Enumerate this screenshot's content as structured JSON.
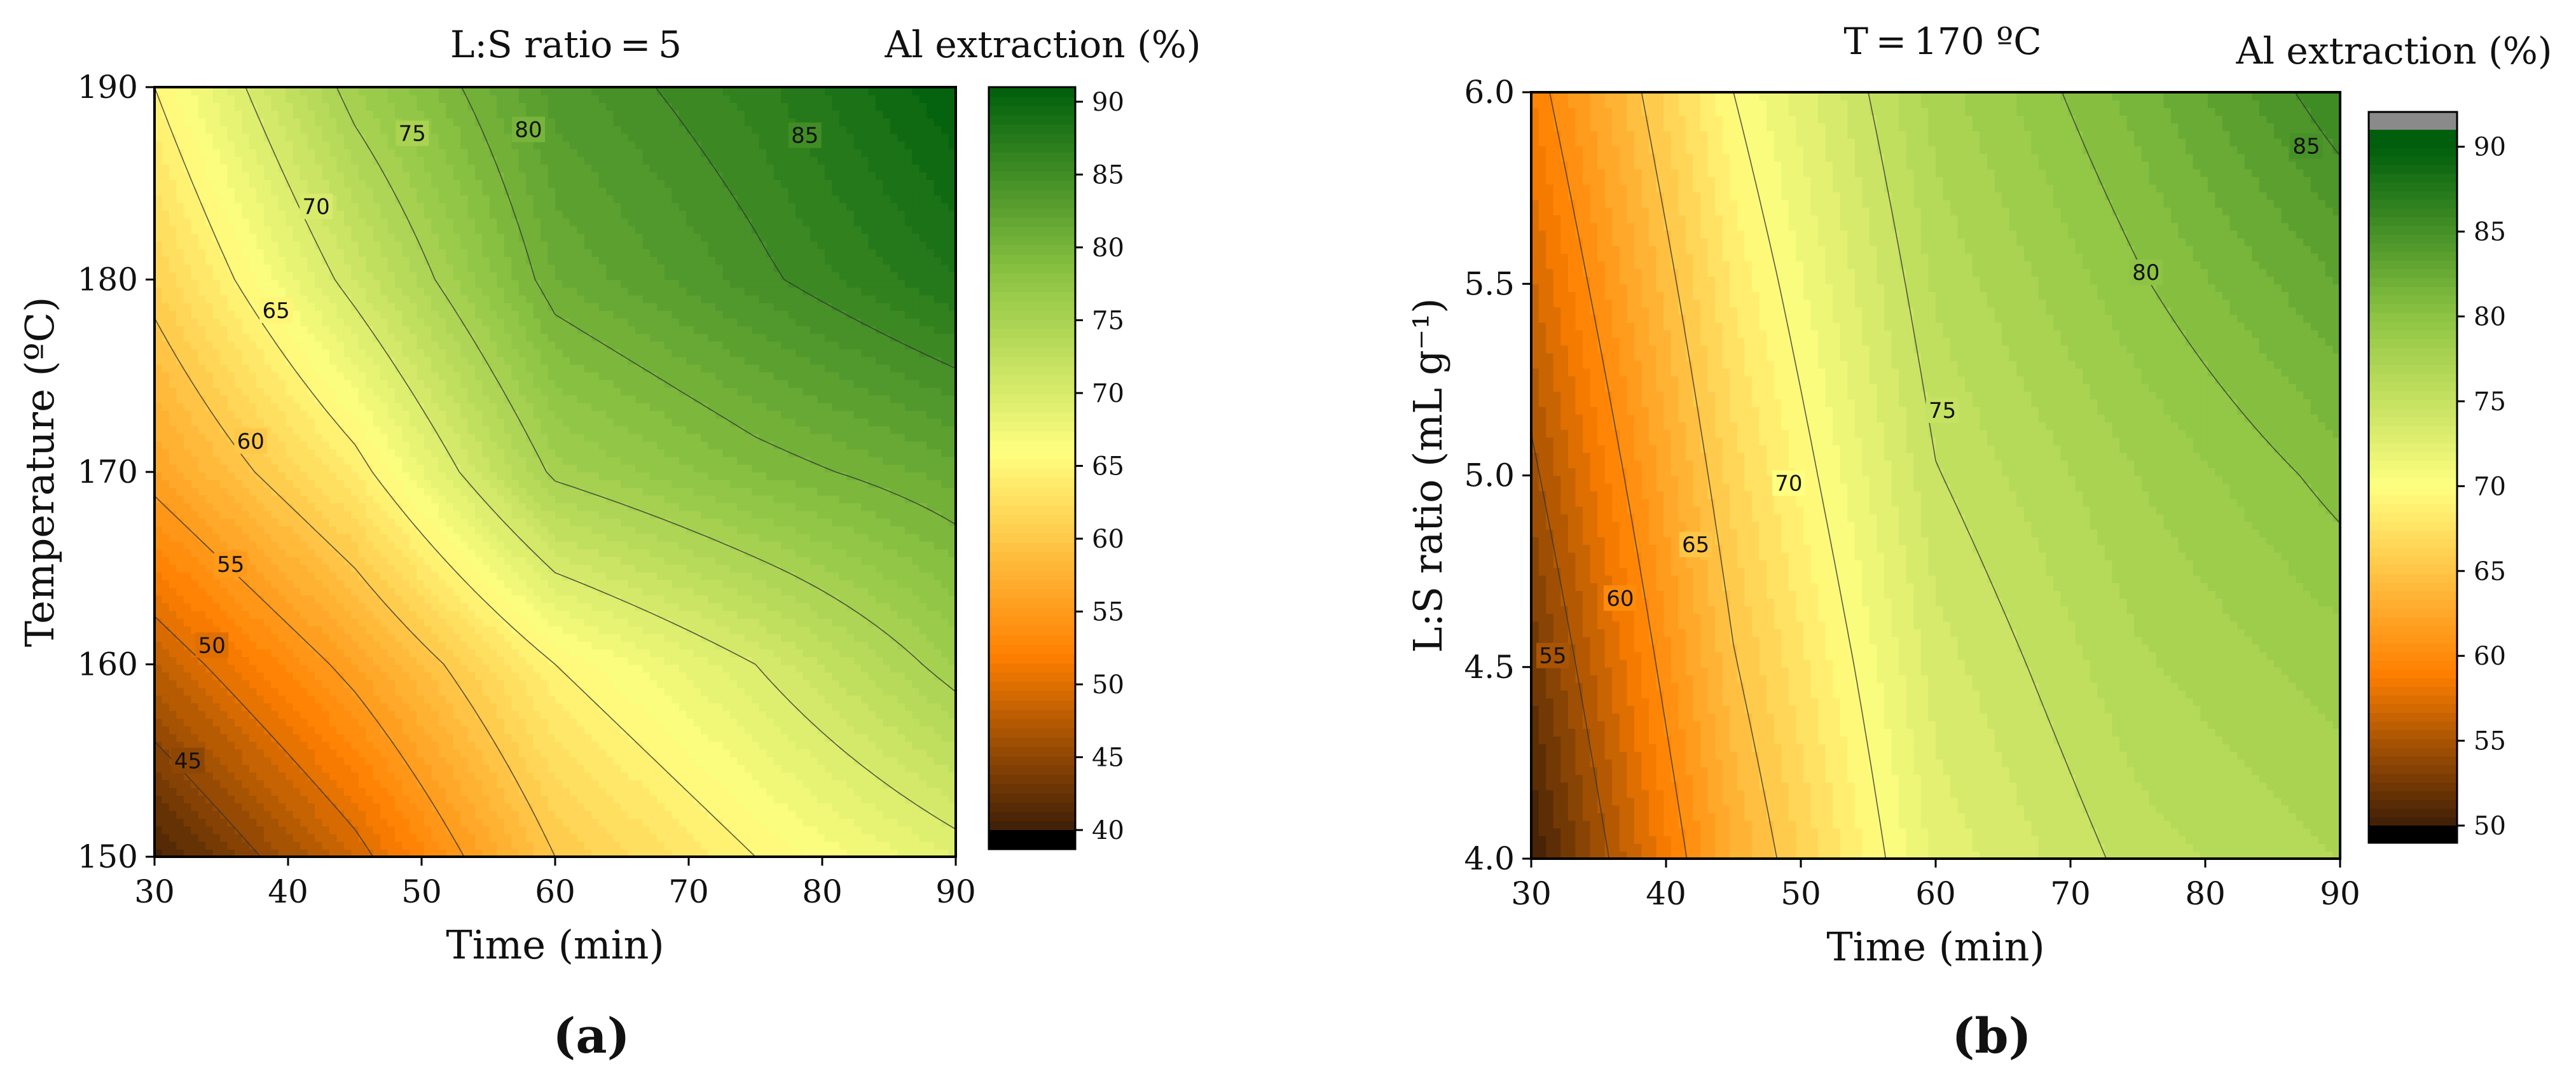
{
  "chart_data": [
    {
      "id": "a",
      "type": "contour",
      "title": "L:S ratio = 5",
      "panel_label": "(a)",
      "xlabel": "Time (min)",
      "ylabel": "Temperature (ºC)",
      "xlim": [
        30,
        90
      ],
      "ylim": [
        150,
        190
      ],
      "xticks": [
        30,
        40,
        50,
        60,
        70,
        80,
        90
      ],
      "yticks": [
        150,
        160,
        170,
        180,
        190
      ],
      "colorbar": {
        "label": "Al extraction (%)",
        "range": [
          40,
          91
        ],
        "ticks": [
          40,
          45,
          50,
          55,
          60,
          65,
          70,
          75,
          80,
          85,
          90
        ],
        "under_color": "#000000",
        "over_color": null,
        "palette": [
          [
            40,
            "#3d1e06"
          ],
          [
            52,
            "#ff7f00"
          ],
          [
            66,
            "#ffff80"
          ],
          [
            78,
            "#8dc443"
          ],
          [
            91,
            "#005e0c"
          ]
        ]
      },
      "contour_levels": [
        45,
        50,
        55,
        60,
        65,
        70,
        75,
        80,
        85
      ],
      "contour_labels": [
        {
          "level": 45,
          "text": "45",
          "x": 32.5,
          "y": 155
        },
        {
          "level": 50,
          "text": "50",
          "x": 34.3,
          "y": 161
        },
        {
          "level": 55,
          "text": "55",
          "x": 35.7,
          "y": 165.2
        },
        {
          "level": 60,
          "text": "60",
          "x": 37.2,
          "y": 171.6
        },
        {
          "level": 65,
          "text": "65",
          "x": 39.1,
          "y": 178.4
        },
        {
          "level": 70,
          "text": "70",
          "x": 42.1,
          "y": 183.8
        },
        {
          "level": 75,
          "text": "75",
          "x": 49.3,
          "y": 187.6
        },
        {
          "level": 80,
          "text": "80",
          "x": 58,
          "y": 187.8
        },
        {
          "level": 85,
          "text": "85",
          "x": 78.7,
          "y": 187.5
        }
      ],
      "z_grid": {
        "x": [
          30,
          45,
          60,
          75,
          90
        ],
        "y": [
          150,
          160,
          170,
          180,
          190
        ],
        "z": [
          [
            40.5,
            49,
            60,
            65,
            69
          ],
          [
            48,
            56,
            65,
            70,
            76
          ],
          [
            56,
            64,
            75.5,
            79,
            81.5
          ],
          [
            61,
            71,
            81,
            84.5,
            88
          ],
          [
            65,
            76,
            83.5,
            86.5,
            91
          ]
        ]
      }
    },
    {
      "id": "b",
      "type": "contour",
      "title": "T = 170 ºC",
      "panel_label": "(b)",
      "xlabel": "Time (min)",
      "ylabel": "L:S ratio (mL g⁻¹)",
      "xlim": [
        30,
        90
      ],
      "ylim": [
        4.0,
        6.0
      ],
      "xticks": [
        30,
        40,
        50,
        60,
        70,
        80,
        90
      ],
      "yticks": [
        4.0,
        4.5,
        5.0,
        5.5,
        6.0
      ],
      "ytick_labels": [
        "4.0",
        "4.5",
        "5.0",
        "5.5",
        "6.0"
      ],
      "colorbar": {
        "label": "Al extraction (%)",
        "range": [
          50,
          91
        ],
        "ticks": [
          50,
          55,
          60,
          65,
          70,
          75,
          80,
          85,
          90
        ],
        "under_color": "#000000",
        "over_color": "#8a8a8a",
        "palette": [
          [
            50,
            "#3d1e06"
          ],
          [
            59,
            "#ff7f00"
          ],
          [
            70,
            "#ffff80"
          ],
          [
            80,
            "#8dc443"
          ],
          [
            90,
            "#005e0c"
          ]
        ]
      },
      "contour_levels": [
        55,
        60,
        65,
        70,
        75,
        80,
        85
      ],
      "contour_labels": [
        {
          "level": 55,
          "text": "55",
          "x": 31.6,
          "y": 4.53
        },
        {
          "level": 60,
          "text": "60",
          "x": 36.6,
          "y": 4.68
        },
        {
          "level": 65,
          "text": "65",
          "x": 42.2,
          "y": 4.82
        },
        {
          "level": 70,
          "text": "70",
          "x": 49.1,
          "y": 4.98
        },
        {
          "level": 75,
          "text": "75",
          "x": 60.5,
          "y": 5.17
        },
        {
          "level": 80,
          "text": "80",
          "x": 75.6,
          "y": 5.53
        },
        {
          "level": 85,
          "text": "85",
          "x": 87.5,
          "y": 5.86
        }
      ],
      "z_grid": {
        "x": [
          30,
          45,
          60,
          75,
          90
        ],
        "y": [
          4.0,
          4.5,
          5.0,
          5.5,
          6.0
        ],
        "z": [
          [
            50,
            63,
            72.3,
            75.5,
            77
          ],
          [
            52.2,
            64.8,
            73.5,
            76.8,
            78.5
          ],
          [
            54.5,
            66.5,
            74.9,
            78,
            80.5
          ],
          [
            56.8,
            68.2,
            76.2,
            79.8,
            83
          ],
          [
            59,
            70,
            77.5,
            81.5,
            86
          ]
        ]
      }
    }
  ]
}
